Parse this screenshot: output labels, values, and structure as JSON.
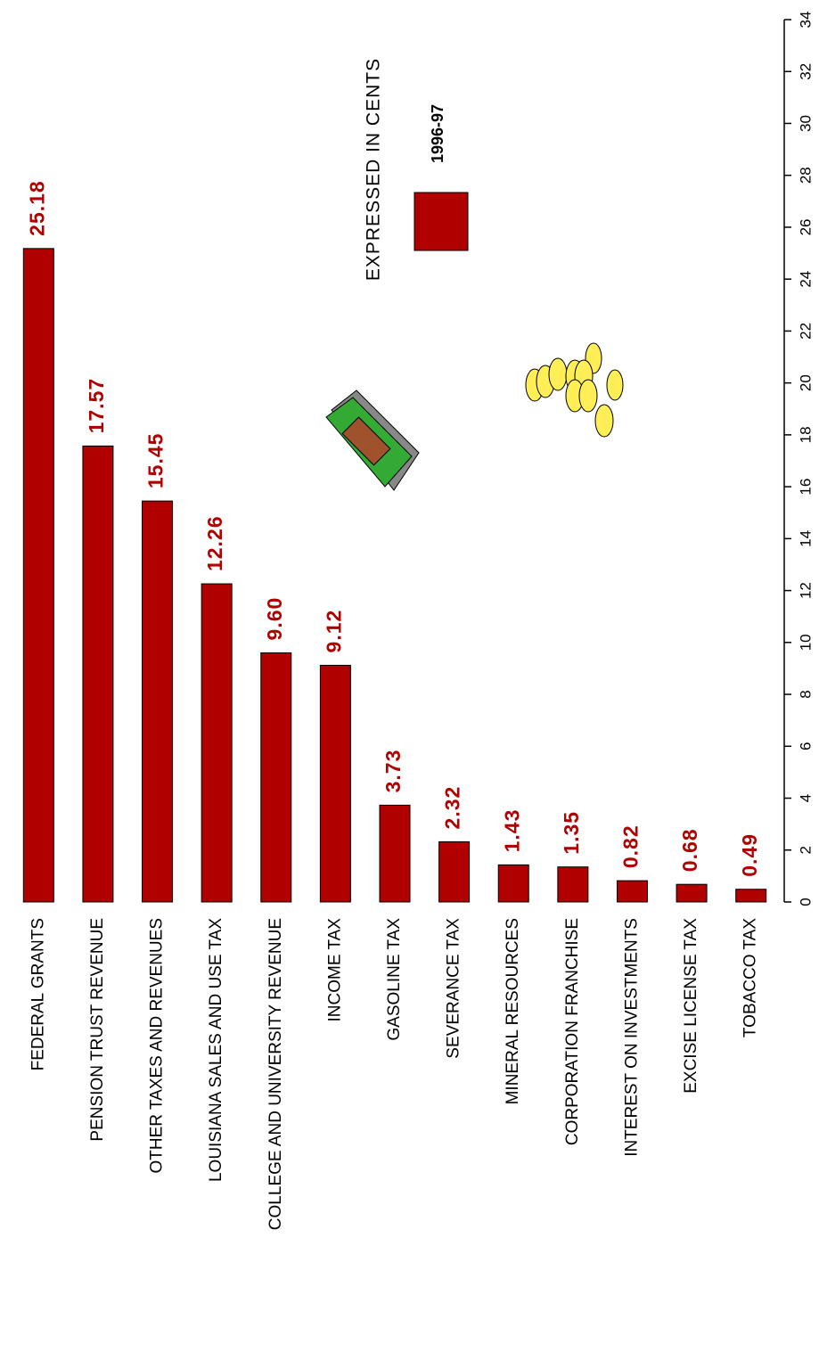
{
  "chart_data": {
    "type": "bar",
    "note": "EXPRESSED IN CENTS",
    "categories": [
      "FEDERAL GRANTS",
      "PENSION TRUST REVENUE",
      "OTHER TAXES AND REVENUES",
      "LOUISIANA SALES AND USE TAX",
      "COLLEGE AND UNIVERSITY REVENUE",
      "INCOME TAX",
      "GASOLINE TAX",
      "SEVERANCE TAX",
      "MINERAL RESOURCES",
      "CORPORATION FRANCHISE",
      "INTEREST ON INVESTMENTS",
      "EXCISE LICENSE TAX",
      "TOBACCO TAX"
    ],
    "series": [
      {
        "name": "1996-97",
        "color": "#b00000",
        "values": [
          25.18,
          17.57,
          15.45,
          12.26,
          9.6,
          9.12,
          3.73,
          2.32,
          1.43,
          1.35,
          0.82,
          0.68,
          0.49
        ],
        "value_labels": [
          "25.18",
          "17.57",
          "15.45",
          "12.26",
          "9.60",
          "9.12",
          "3.73",
          "2.32",
          "1.43",
          "1.35",
          "0.82",
          "0.68",
          "0.49"
        ]
      }
    ],
    "ylim": [
      0,
      34
    ],
    "yticks": [
      0,
      2,
      4,
      6,
      8,
      10,
      12,
      14,
      16,
      18,
      20,
      22,
      24,
      26,
      28,
      30,
      32,
      34
    ]
  }
}
